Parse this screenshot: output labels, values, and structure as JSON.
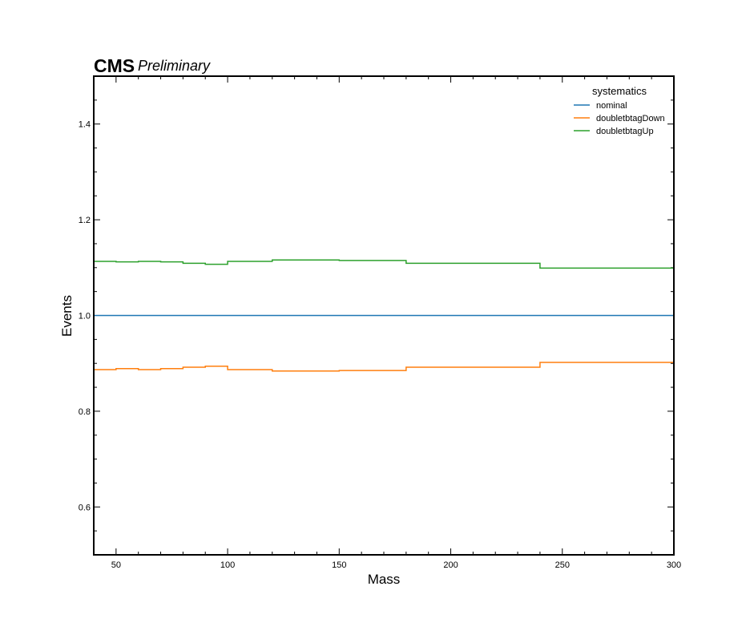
{
  "header": {
    "brand": "CMS",
    "label": "Preliminary"
  },
  "chart_data": {
    "type": "line",
    "drawstyle": "step-hist",
    "xlabel": "Mass",
    "ylabel": "Events",
    "xlim": [
      40,
      300
    ],
    "ylim": [
      0.5,
      1.5
    ],
    "xticks": [
      50,
      100,
      150,
      200,
      250,
      300
    ],
    "yticks": [
      0.6,
      0.8,
      1.0,
      1.2,
      1.4
    ],
    "xtick_labels": [
      "50",
      "100",
      "150",
      "200",
      "250",
      "300"
    ],
    "ytick_labels": [
      "0.6",
      "0.8",
      "1.0",
      "1.2",
      "1.4"
    ],
    "bin_edges": [
      40,
      50,
      60,
      70,
      80,
      90,
      100,
      120,
      150,
      180,
      240,
      300
    ],
    "legend": {
      "title": "systematics",
      "placement": "top-right"
    },
    "series": [
      {
        "name": "nominal",
        "color": "#1f77b4",
        "values": [
          1.0,
          1.0,
          1.0,
          1.0,
          1.0,
          1.0,
          1.0,
          1.0,
          1.0,
          1.0,
          1.0
        ]
      },
      {
        "name": "doubletbtagDown",
        "color": "#ff7f0e",
        "values": [
          0.887,
          0.889,
          0.887,
          0.889,
          0.892,
          0.894,
          0.887,
          0.884,
          0.885,
          0.892,
          0.902
        ]
      },
      {
        "name": "doubletbtagUp",
        "color": "#2ca02c",
        "values": [
          1.113,
          1.112,
          1.113,
          1.112,
          1.109,
          1.107,
          1.113,
          1.116,
          1.115,
          1.109,
          1.099
        ]
      }
    ]
  }
}
